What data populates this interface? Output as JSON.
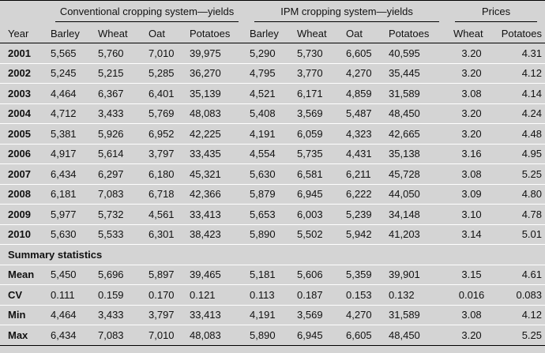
{
  "header": {
    "year_label": "Year",
    "group_conventional": "Conventional cropping system—yields",
    "group_ipm": "IPM cropping system—yields",
    "group_prices": "Prices",
    "columns": [
      "Barley",
      "Wheat",
      "Oat",
      "Potatoes",
      "Barley",
      "Wheat",
      "Oat",
      "Potatoes",
      "Wheat",
      "Potatoes"
    ]
  },
  "rows": [
    {
      "year": "2001",
      "values": [
        "5,565",
        "5,760",
        "7,010",
        "39,975",
        "5,290",
        "5,730",
        "6,605",
        "40,595",
        "3.20",
        "4.31"
      ]
    },
    {
      "year": "2002",
      "values": [
        "5,245",
        "5,215",
        "5,285",
        "36,270",
        "4,795",
        "3,770",
        "4,270",
        "35,445",
        "3.20",
        "4.12"
      ]
    },
    {
      "year": "2003",
      "values": [
        "4,464",
        "6,367",
        "6,401",
        "35,139",
        "4,521",
        "6,171",
        "4,859",
        "31,589",
        "3.08",
        "4.14"
      ]
    },
    {
      "year": "2004",
      "values": [
        "4,712",
        "3,433",
        "5,769",
        "48,083",
        "5,408",
        "3,569",
        "5,487",
        "48,450",
        "3.20",
        "4.24"
      ]
    },
    {
      "year": "2005",
      "values": [
        "5,381",
        "5,926",
        "6,952",
        "42,225",
        "4,191",
        "6,059",
        "4,323",
        "42,665",
        "3.20",
        "4.48"
      ]
    },
    {
      "year": "2006",
      "values": [
        "4,917",
        "5,614",
        "3,797",
        "33,435",
        "4,554",
        "5,735",
        "4,431",
        "35,138",
        "3.16",
        "4.95"
      ]
    },
    {
      "year": "2007",
      "values": [
        "6,434",
        "6,297",
        "6,180",
        "45,321",
        "5,630",
        "6,581",
        "6,211",
        "45,728",
        "3.08",
        "5.25"
      ]
    },
    {
      "year": "2008",
      "values": [
        "6,181",
        "7,083",
        "6,718",
        "42,366",
        "5,879",
        "6,945",
        "6,222",
        "44,050",
        "3.09",
        "4.80"
      ]
    },
    {
      "year": "2009",
      "values": [
        "5,977",
        "5,732",
        "4,561",
        "33,413",
        "5,653",
        "6,003",
        "5,239",
        "34,148",
        "3.10",
        "4.78"
      ]
    },
    {
      "year": "2010",
      "values": [
        "5,630",
        "5,533",
        "6,301",
        "38,423",
        "5,890",
        "5,502",
        "5,942",
        "41,203",
        "3.14",
        "5.01"
      ]
    }
  ],
  "summary_label": "Summary statistics",
  "summary": [
    {
      "label": "Mean",
      "values": [
        "5,450",
        "5,696",
        "5,897",
        "39,465",
        "5,181",
        "5,606",
        "5,359",
        "39,901",
        "3.15",
        "4.61"
      ]
    },
    {
      "label": "CV",
      "values": [
        "0.111",
        "0.159",
        "0.170",
        "0.121",
        "0.113",
        "0.187",
        "0.153",
        "0.132",
        "0.016",
        "0.083"
      ]
    },
    {
      "label": "Min",
      "values": [
        "4,464",
        "3,433",
        "3,797",
        "33,413",
        "4,191",
        "3,569",
        "4,270",
        "31,589",
        "3.08",
        "4.12"
      ]
    },
    {
      "label": "Max",
      "values": [
        "6,434",
        "7,083",
        "7,010",
        "48,083",
        "5,890",
        "6,945",
        "6,605",
        "48,450",
        "3.20",
        "5.25"
      ]
    }
  ]
}
